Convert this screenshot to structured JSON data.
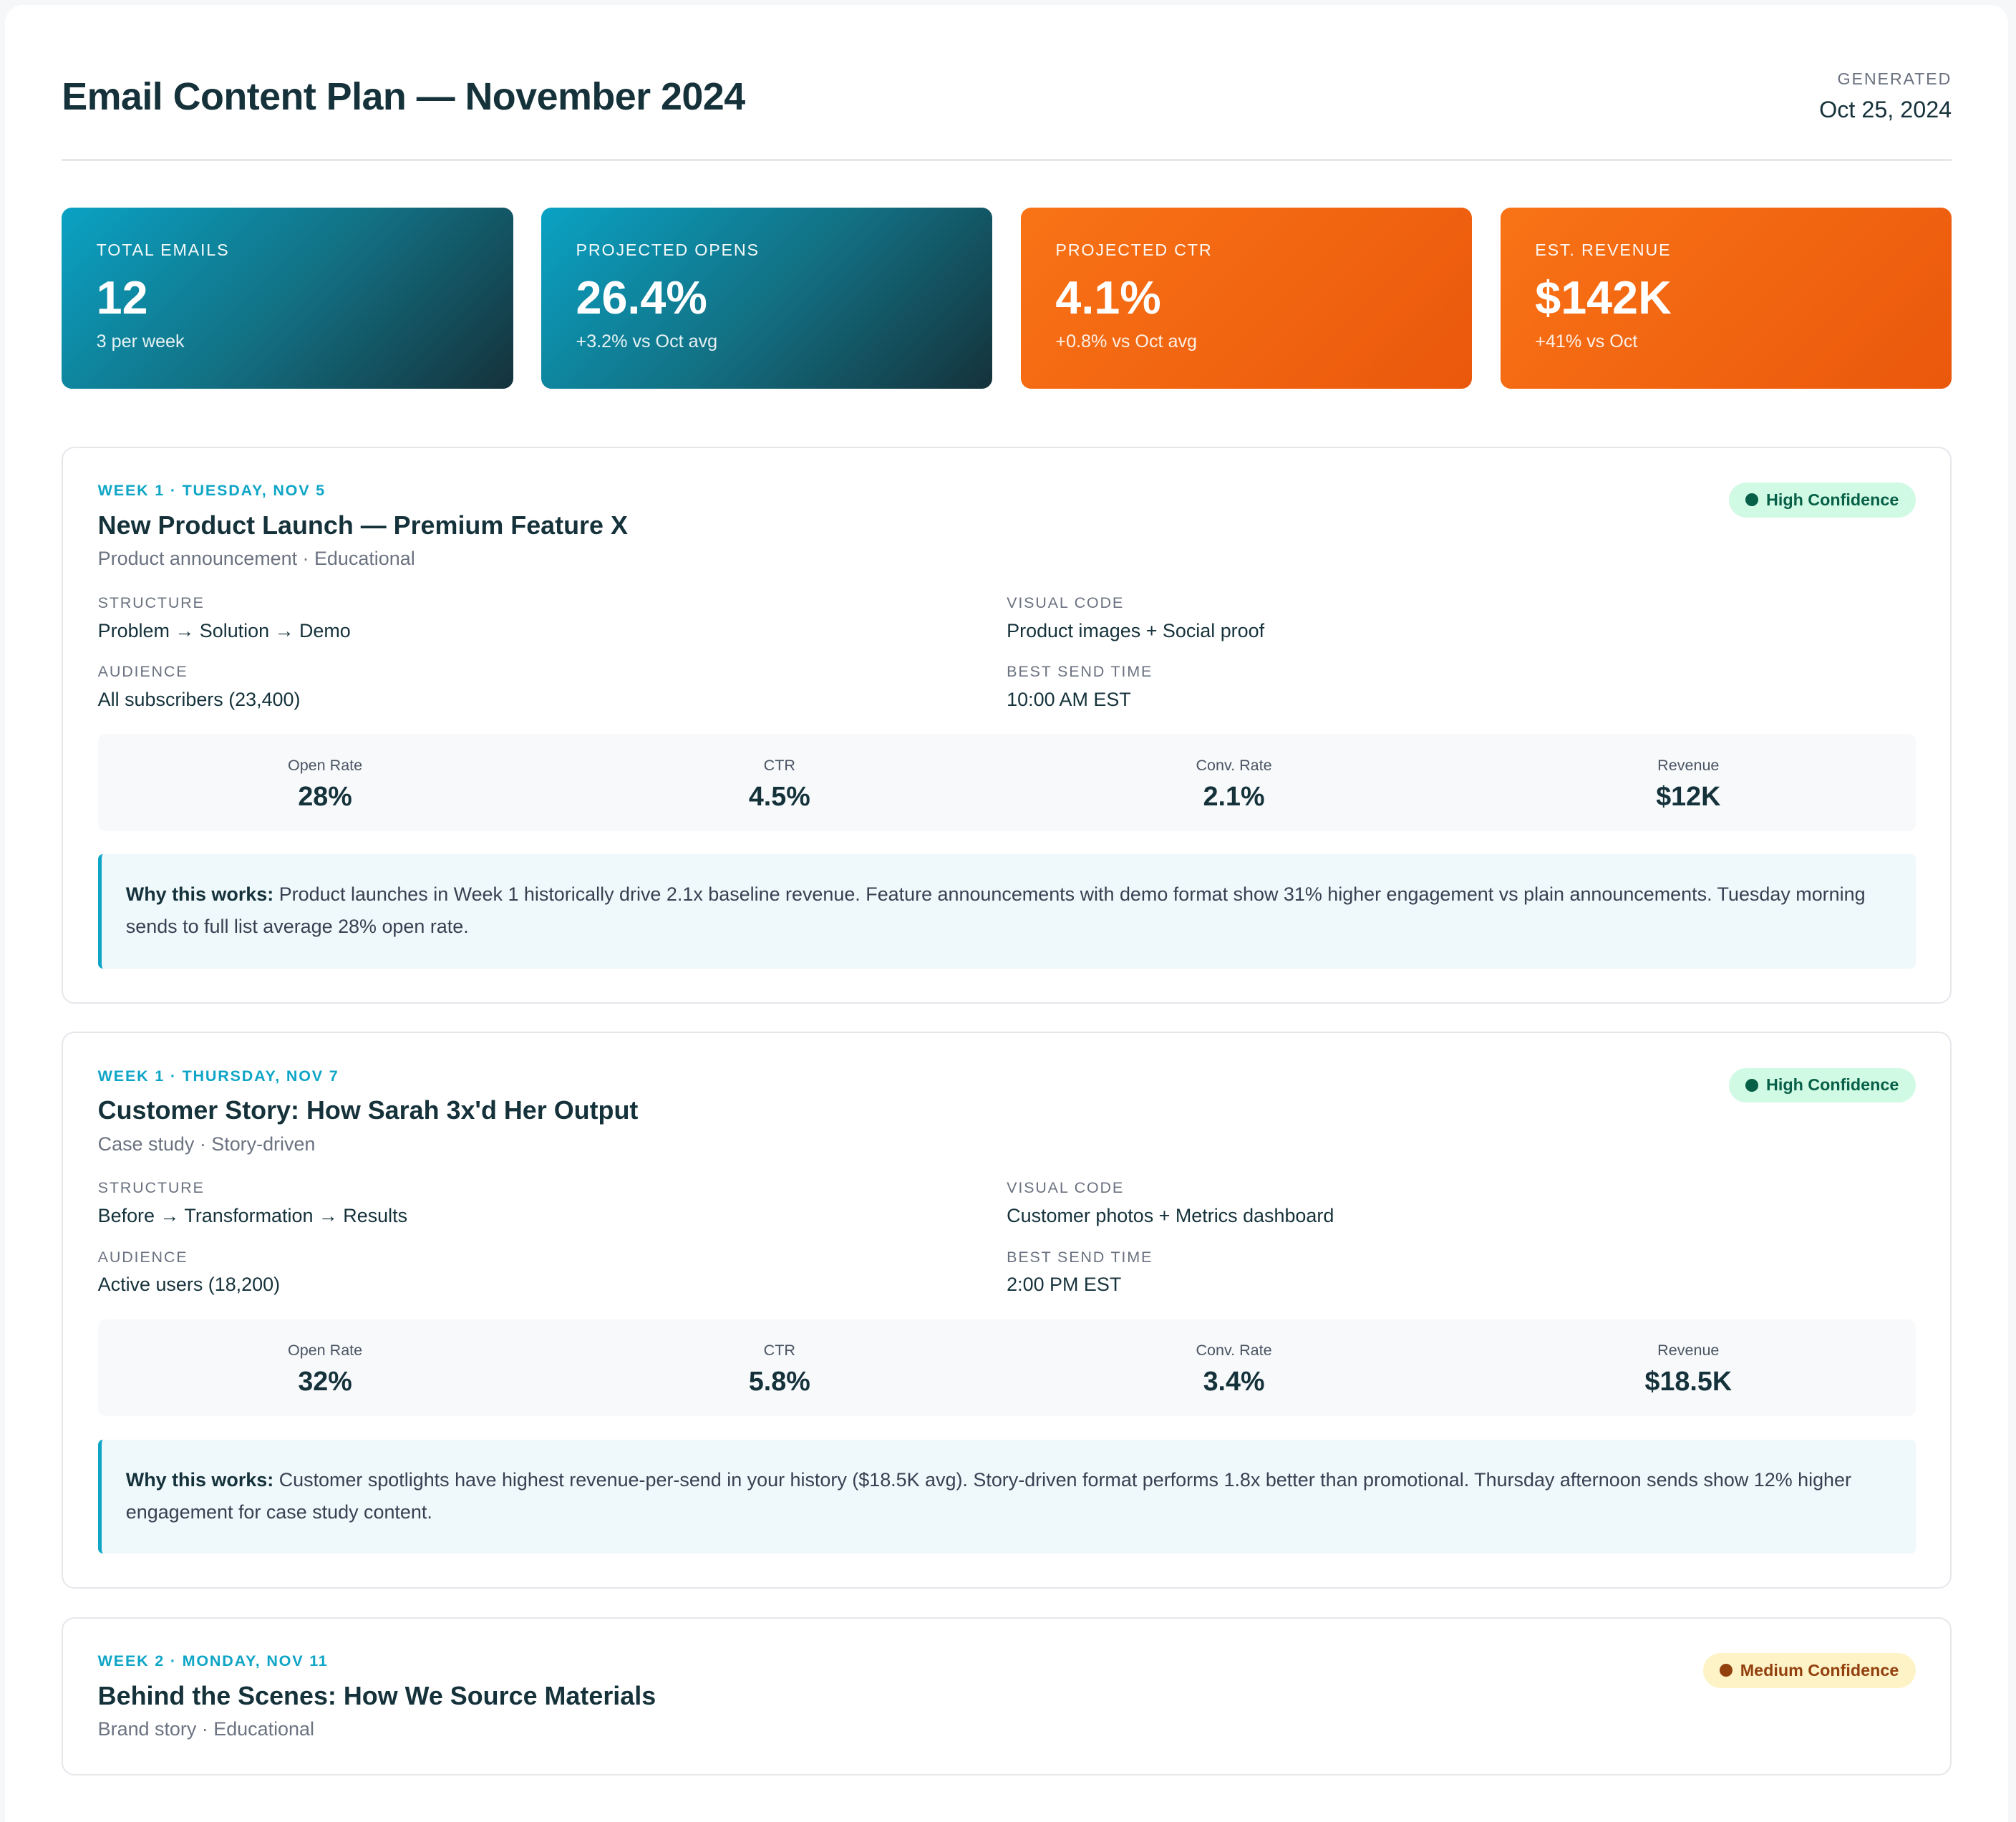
{
  "header": {
    "title": "Email Content Plan — November 2024",
    "generated_label": "GENERATED",
    "generated_date": "Oct 25, 2024"
  },
  "stats": [
    {
      "label": "TOTAL EMAILS",
      "value": "12",
      "sub": "3 per week"
    },
    {
      "label": "PROJECTED OPENS",
      "value": "26.4%",
      "sub": "+3.2% vs Oct avg"
    },
    {
      "label": "PROJECTED CTR",
      "value": "4.1%",
      "sub": "+0.8% vs Oct avg"
    },
    {
      "label": "EST. REVENUE",
      "value": "$142K",
      "sub": "+41% vs Oct"
    }
  ],
  "labels": {
    "structure": "STRUCTURE",
    "visual": "VISUAL CODE",
    "audience": "AUDIENCE",
    "send_time": "BEST SEND TIME",
    "open": "Open Rate",
    "ctr": "CTR",
    "conv": "Conv. Rate",
    "revenue": "Revenue",
    "why": "Why this works:"
  },
  "colors": {
    "teal": "#0ea5c6",
    "orange": "#f97316",
    "high_bg": "#d1fae5",
    "medium_bg": "#fef3c7"
  },
  "cards": [
    {
      "week": "WEEK 1 · TUESDAY, NOV 5",
      "title": "New Product Launch — Premium Feature X",
      "type": "Product announcement · Educational",
      "confidence": "High Confidence",
      "structure": "Problem → Solution → Demo",
      "visual": "Product images + Social proof",
      "audience": "All subscribers (23,400)",
      "send_time": "10:00 AM EST",
      "open": "28%",
      "ctr": "4.5%",
      "conv": "2.1%",
      "revenue": "$12K",
      "why": "Product launches in Week 1 historically drive 2.1x baseline revenue. Feature announcements with demo format show 31% higher engagement vs plain announcements. Tuesday morning sends to full list average 28% open rate."
    },
    {
      "week": "WEEK 1 · THURSDAY, NOV 7",
      "title": "Customer Story: How Sarah 3x'd Her Output",
      "type": "Case study · Story-driven",
      "confidence": "High Confidence",
      "structure": "Before → Transformation → Results",
      "visual": "Customer photos + Metrics dashboard",
      "audience": "Active users (18,200)",
      "send_time": "2:00 PM EST",
      "open": "32%",
      "ctr": "5.8%",
      "conv": "3.4%",
      "revenue": "$18.5K",
      "why": "Customer spotlights have highest revenue-per-send in your history ($18.5K avg). Story-driven format performs 1.8x better than promotional. Thursday afternoon sends show 12% higher engagement for case study content."
    },
    {
      "week": "WEEK 2 · MONDAY, NOV 11",
      "title": "Behind the Scenes: How We Source Materials",
      "type": "Brand story · Educational",
      "confidence": "Medium Confidence"
    }
  ]
}
